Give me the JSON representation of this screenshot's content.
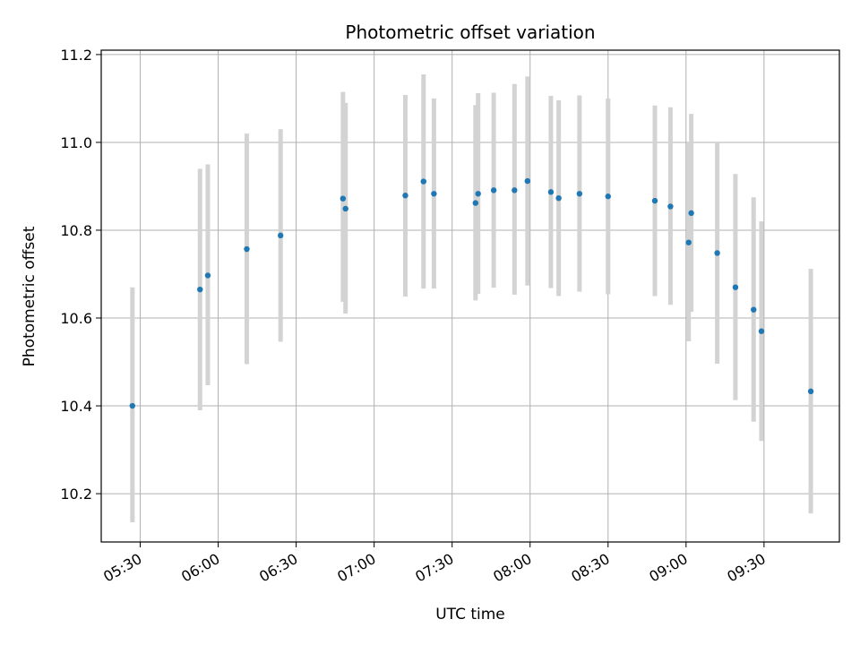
{
  "chart_data": {
    "type": "scatter",
    "title": "Photometric offset variation",
    "xlabel": "UTC time",
    "ylabel": "Photometric offset",
    "x_axis_kind": "time",
    "xlim": [
      "05:15",
      "09:59"
    ],
    "ylim": [
      10.09,
      11.21
    ],
    "grid": true,
    "x_ticks": [
      "05:30",
      "06:00",
      "06:30",
      "07:00",
      "07:30",
      "08:00",
      "08:30",
      "09:00",
      "09:30"
    ],
    "y_ticks": [
      "10.2",
      "10.4",
      "10.6",
      "10.8",
      "11.0",
      "11.2"
    ],
    "colors": {
      "points": "#1f77b4",
      "error_bars": "#d3d3d3",
      "grid": "#b0b0b0"
    },
    "points": [
      {
        "x": "05:27",
        "y": 10.4,
        "yerr_low": 10.135,
        "yerr_high": 10.67
      },
      {
        "x": "05:53",
        "y": 10.665,
        "yerr_low": 10.39,
        "yerr_high": 10.94
      },
      {
        "x": "05:56",
        "y": 10.697,
        "yerr_low": 10.447,
        "yerr_high": 10.95
      },
      {
        "x": "06:11",
        "y": 10.757,
        "yerr_low": 10.495,
        "yerr_high": 11.02
      },
      {
        "x": "06:24",
        "y": 10.788,
        "yerr_low": 10.546,
        "yerr_high": 11.03
      },
      {
        "x": "06:48",
        "y": 10.872,
        "yerr_low": 10.637,
        "yerr_high": 11.115
      },
      {
        "x": "06:49",
        "y": 10.849,
        "yerr_low": 10.61,
        "yerr_high": 11.09
      },
      {
        "x": "07:12",
        "y": 10.879,
        "yerr_low": 10.649,
        "yerr_high": 11.108
      },
      {
        "x": "07:19",
        "y": 10.911,
        "yerr_low": 10.667,
        "yerr_high": 11.155
      },
      {
        "x": "07:23",
        "y": 10.883,
        "yerr_low": 10.667,
        "yerr_high": 11.1
      },
      {
        "x": "07:39",
        "y": 10.862,
        "yerr_low": 10.64,
        "yerr_high": 11.085
      },
      {
        "x": "07:40",
        "y": 10.883,
        "yerr_low": 10.655,
        "yerr_high": 11.112
      },
      {
        "x": "07:46",
        "y": 10.891,
        "yerr_low": 10.669,
        "yerr_high": 11.113
      },
      {
        "x": "07:54",
        "y": 10.891,
        "yerr_low": 10.653,
        "yerr_high": 11.133
      },
      {
        "x": "07:59",
        "y": 10.912,
        "yerr_low": 10.674,
        "yerr_high": 11.15
      },
      {
        "x": "08:08",
        "y": 10.887,
        "yerr_low": 10.668,
        "yerr_high": 11.106
      },
      {
        "x": "08:11",
        "y": 10.873,
        "yerr_low": 10.65,
        "yerr_high": 11.096
      },
      {
        "x": "08:19",
        "y": 10.883,
        "yerr_low": 10.66,
        "yerr_high": 11.107
      },
      {
        "x": "08:30",
        "y": 10.877,
        "yerr_low": 10.654,
        "yerr_high": 11.1
      },
      {
        "x": "08:48",
        "y": 10.867,
        "yerr_low": 10.65,
        "yerr_high": 11.084
      },
      {
        "x": "08:54",
        "y": 10.854,
        "yerr_low": 10.63,
        "yerr_high": 11.08
      },
      {
        "x": "09:01",
        "y": 10.772,
        "yerr_low": 10.547,
        "yerr_high": 11.0
      },
      {
        "x": "09:02",
        "y": 10.839,
        "yerr_low": 10.614,
        "yerr_high": 11.065
      },
      {
        "x": "09:12",
        "y": 10.748,
        "yerr_low": 10.496,
        "yerr_high": 11.0
      },
      {
        "x": "09:19",
        "y": 10.67,
        "yerr_low": 10.413,
        "yerr_high": 10.928
      },
      {
        "x": "09:26",
        "y": 10.619,
        "yerr_low": 10.364,
        "yerr_high": 10.875
      },
      {
        "x": "09:29",
        "y": 10.57,
        "yerr_low": 10.32,
        "yerr_high": 10.82
      },
      {
        "x": "09:48",
        "y": 10.433,
        "yerr_low": 10.155,
        "yerr_high": 10.712
      }
    ]
  }
}
